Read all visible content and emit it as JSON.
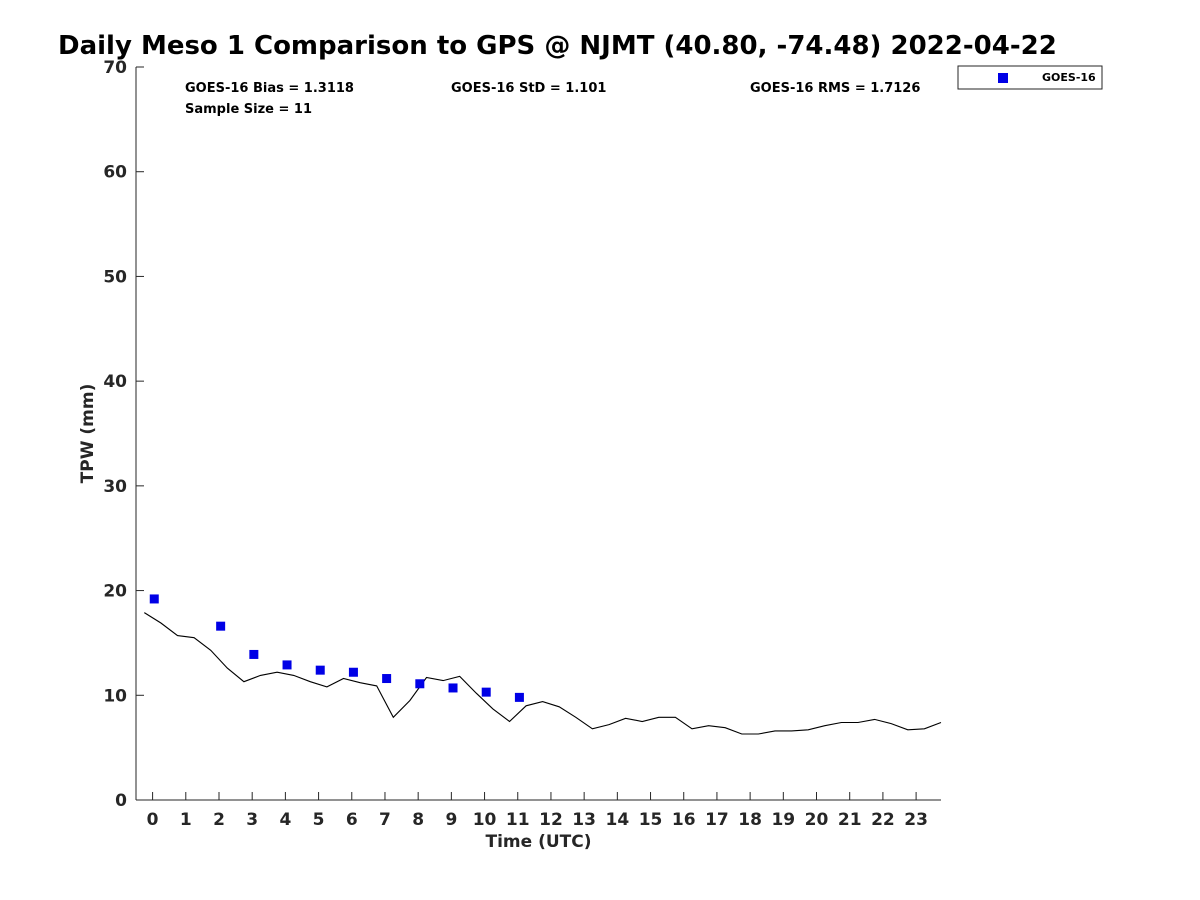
{
  "chart_data": {
    "type": "line",
    "title": "Daily Meso 1 Comparison to GPS @ NJMT (40.80, -74.48) 2022-04-22",
    "xlabel": "Time (UTC)",
    "ylabel": "TPW (mm)",
    "xlim": [
      -0.5,
      23.75
    ],
    "ylim": [
      0,
      70
    ],
    "xticks": [
      "0",
      "1",
      "2",
      "3",
      "4",
      "5",
      "6",
      "7",
      "8",
      "9",
      "10",
      "11",
      "12",
      "13",
      "14",
      "15",
      "16",
      "17",
      "18",
      "19",
      "20",
      "21",
      "22",
      "23"
    ],
    "yticks": [
      "0",
      "10",
      "20",
      "30",
      "40",
      "50",
      "60",
      "70"
    ],
    "grid": false,
    "legend_position": "top-right, outside",
    "stats": {
      "bias": "GOES-16 Bias = 1.3118",
      "std": "GOES-16 StD = 1.101",
      "rms": "GOES-16 RMS = 1.7126",
      "sample": "Sample Size = 11"
    },
    "series": [
      {
        "name": "",
        "kind": "line",
        "color": "#000000",
        "x": [
          -0.25,
          0.25,
          0.75,
          1.25,
          1.75,
          2.25,
          2.75,
          3.25,
          3.75,
          4.25,
          4.75,
          5.25,
          5.75,
          6.25,
          6.75,
          7.25,
          7.75,
          8.25,
          8.75,
          9.25,
          9.75,
          10.25,
          10.75,
          11.25,
          11.75,
          12.25,
          12.75,
          13.25,
          13.75,
          14.25,
          14.75,
          15.25,
          15.75,
          16.25,
          16.75,
          17.25,
          17.75,
          18.25,
          18.75,
          19.25,
          19.75,
          20.25,
          20.75,
          21.25,
          21.75,
          22.25,
          22.75,
          23.25,
          23.75
        ],
        "y": [
          17.9,
          16.9,
          15.7,
          15.5,
          14.3,
          12.6,
          11.3,
          11.9,
          12.2,
          11.9,
          11.3,
          10.8,
          11.6,
          11.2,
          10.9,
          7.9,
          9.5,
          11.7,
          11.4,
          11.8,
          10.2,
          8.7,
          7.5,
          9.0,
          9.4,
          8.9,
          7.9,
          6.8,
          7.2,
          7.8,
          7.5,
          7.9,
          7.9,
          6.8,
          7.1,
          6.9,
          6.3,
          6.3,
          6.6,
          6.6,
          6.7,
          7.1,
          7.4,
          7.4,
          7.7,
          7.3,
          6.7,
          6.8,
          7.4
        ]
      },
      {
        "name": "GOES-16",
        "kind": "scatter",
        "color": "#0000e6",
        "x": [
          0.05,
          2.05,
          3.05,
          4.05,
          5.05,
          6.05,
          7.05,
          8.05,
          9.05,
          10.05,
          11.05
        ],
        "y": [
          19.2,
          16.6,
          13.9,
          12.9,
          12.4,
          12.2,
          11.6,
          11.1,
          10.7,
          10.3,
          9.8
        ]
      }
    ]
  }
}
